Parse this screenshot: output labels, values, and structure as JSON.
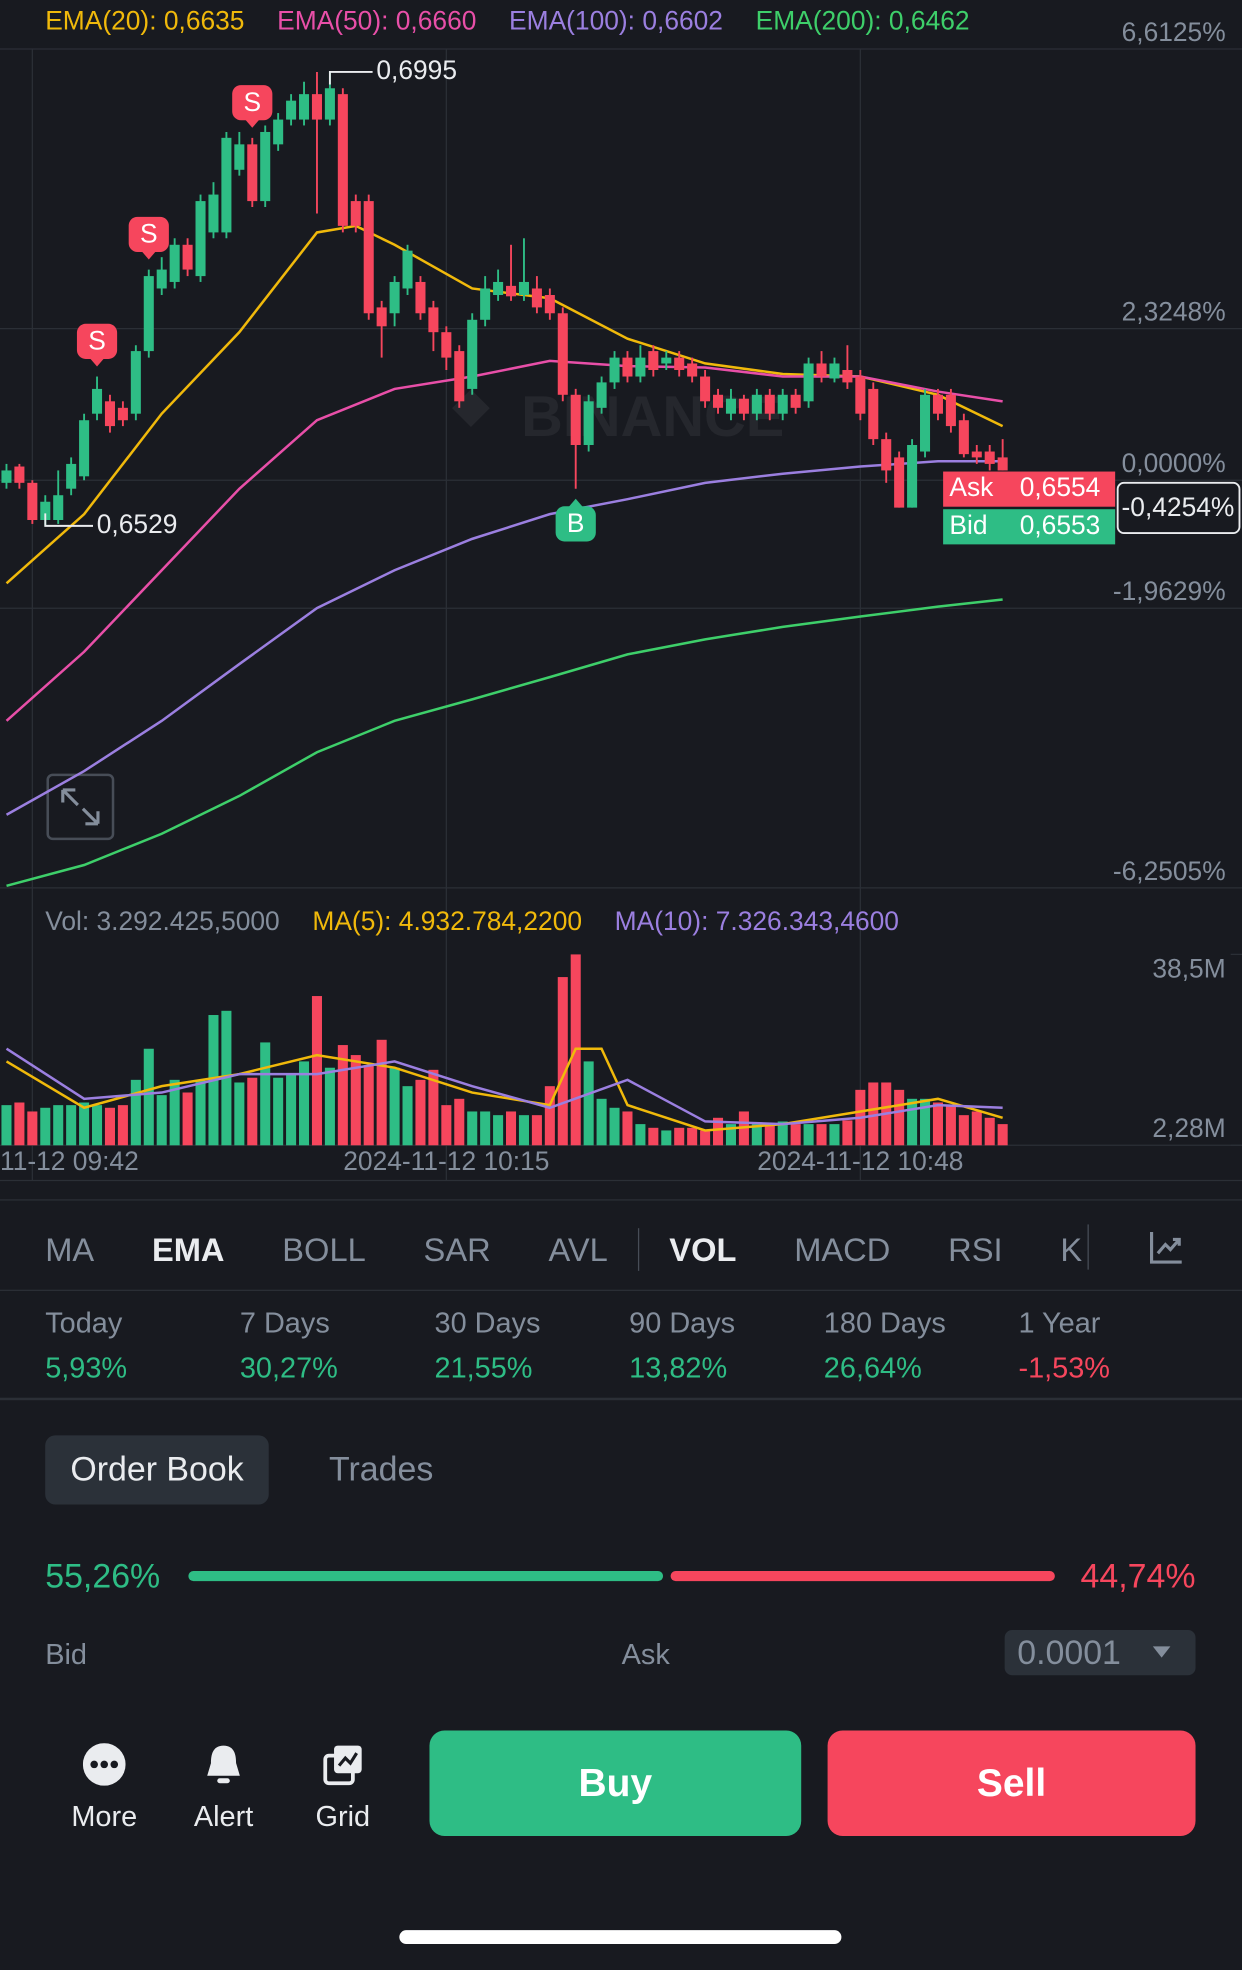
{
  "chart_data": [
    {
      "type": "candlestick",
      "up_color": "#2ebd85",
      "down_color": "#f6465d",
      "grid": true,
      "xlim": [
        -0.5,
        95.5
      ],
      "ylim": [
        -6.2505,
        6.6125
      ],
      "yticks": [
        {
          "value": -6.2505,
          "label": "-6,2505%"
        },
        {
          "value": -1.9629,
          "label": "-1,9629%"
        },
        {
          "value": 0,
          "label": "0,0000%"
        },
        {
          "value": 2.3248,
          "label": "2,3248%"
        },
        {
          "value": 6.6125,
          "label": "6,6125%"
        }
      ],
      "ohlc": [
        [
          -0.04,
          0.25,
          -0.13,
          0.15
        ],
        [
          0.21,
          0.25,
          -0.13,
          -0.04
        ],
        [
          -0.04,
          0.0,
          -0.67,
          -0.61
        ],
        [
          -0.61,
          -0.23,
          -0.7,
          -0.33
        ],
        [
          -0.61,
          0.15,
          -0.67,
          -0.23
        ],
        [
          -0.13,
          0.35,
          -0.23,
          0.25
        ],
        [
          0.06,
          1.02,
          0.0,
          0.92
        ],
        [
          1.02,
          1.59,
          0.92,
          1.4
        ],
        [
          1.21,
          1.31,
          0.73,
          0.83
        ],
        [
          1.11,
          1.21,
          0.83,
          0.92
        ],
        [
          1.02,
          2.07,
          0.92,
          1.98
        ],
        [
          1.98,
          3.23,
          1.88,
          3.13
        ],
        [
          2.94,
          3.42,
          2.84,
          3.23
        ],
        [
          3.04,
          3.71,
          2.94,
          3.61
        ],
        [
          3.61,
          3.71,
          3.13,
          3.23
        ],
        [
          3.13,
          4.38,
          3.04,
          4.28
        ],
        [
          3.8,
          4.57,
          3.71,
          4.38
        ],
        [
          3.8,
          5.34,
          3.71,
          5.25
        ],
        [
          4.76,
          5.34,
          4.67,
          5.15
        ],
        [
          5.15,
          5.25,
          4.19,
          4.28
        ],
        [
          4.28,
          5.44,
          4.19,
          5.34
        ],
        [
          5.15,
          5.63,
          5.05,
          5.53
        ],
        [
          5.53,
          5.92,
          5.44,
          5.82
        ],
        [
          5.53,
          6.11,
          5.44,
          5.92
        ],
        [
          5.92,
          6.26,
          4.09,
          5.53
        ],
        [
          5.53,
          6.26,
          5.44,
          6.01
        ],
        [
          5.92,
          6.01,
          3.8,
          3.9
        ],
        [
          4.28,
          4.38,
          3.8,
          3.9
        ],
        [
          4.28,
          4.38,
          2.46,
          2.56
        ],
        [
          2.65,
          2.75,
          1.88,
          2.36
        ],
        [
          2.56,
          3.13,
          2.36,
          3.04
        ],
        [
          2.94,
          3.61,
          2.84,
          3.52
        ],
        [
          3.04,
          3.13,
          2.46,
          2.56
        ],
        [
          2.65,
          2.75,
          1.98,
          2.27
        ],
        [
          2.27,
          2.36,
          1.69,
          1.88
        ],
        [
          1.98,
          2.07,
          1.11,
          1.21
        ],
        [
          1.4,
          2.56,
          1.31,
          2.46
        ],
        [
          2.46,
          3.13,
          2.36,
          2.94
        ],
        [
          2.84,
          3.23,
          2.75,
          3.04
        ],
        [
          2.98,
          3.61,
          2.75,
          2.82
        ],
        [
          2.84,
          3.71,
          2.75,
          3.04
        ],
        [
          2.94,
          3.13,
          2.56,
          2.65
        ],
        [
          2.84,
          2.94,
          2.46,
          2.56
        ],
        [
          2.56,
          2.65,
          1.21,
          1.31
        ],
        [
          1.31,
          1.4,
          -0.13,
          0.54
        ],
        [
          0.54,
          1.31,
          0.44,
          1.21
        ],
        [
          1.11,
          1.59,
          1.02,
          1.5
        ],
        [
          1.5,
          1.98,
          1.4,
          1.88
        ],
        [
          1.88,
          1.98,
          1.5,
          1.59
        ],
        [
          1.59,
          2.07,
          1.5,
          1.88
        ],
        [
          1.98,
          2.07,
          1.59,
          1.69
        ],
        [
          1.79,
          1.98,
          1.69,
          1.88
        ],
        [
          1.88,
          1.98,
          1.59,
          1.69
        ],
        [
          1.79,
          1.88,
          1.5,
          1.59
        ],
        [
          1.59,
          1.69,
          1.11,
          1.21
        ],
        [
          1.31,
          1.4,
          1.02,
          1.11
        ],
        [
          1.02,
          1.4,
          0.92,
          1.25
        ],
        [
          1.25,
          1.31,
          0.92,
          1.02
        ],
        [
          1.02,
          1.4,
          0.92,
          1.31
        ],
        [
          1.31,
          1.4,
          0.92,
          1.02
        ],
        [
          1.02,
          1.4,
          0.92,
          1.31
        ],
        [
          1.31,
          1.4,
          1.02,
          1.11
        ],
        [
          1.21,
          1.88,
          1.11,
          1.79
        ],
        [
          1.79,
          1.98,
          1.5,
          1.59
        ],
        [
          1.56,
          1.88,
          1.5,
          1.79
        ],
        [
          1.69,
          2.07,
          1.4,
          1.5
        ],
        [
          1.59,
          1.69,
          0.92,
          1.02
        ],
        [
          1.4,
          1.5,
          0.54,
          0.63
        ],
        [
          0.63,
          0.73,
          -0.04,
          0.15
        ],
        [
          0.35,
          0.44,
          -0.42,
          -0.42
        ],
        [
          -0.42,
          0.63,
          -0.42,
          0.54
        ],
        [
          0.44,
          1.4,
          0.35,
          1.31
        ],
        [
          1.31,
          1.4,
          0.92,
          1.02
        ],
        [
          1.31,
          1.4,
          0.73,
          0.83
        ],
        [
          0.92,
          1.02,
          0.35,
          0.4
        ],
        [
          0.44,
          0.54,
          0.25,
          0.35
        ],
        [
          0.44,
          0.54,
          0.15,
          0.25
        ],
        [
          0.35,
          0.63,
          0.15,
          0.15
        ]
      ],
      "series": [
        {
          "name": "EMA(20): 0,6635",
          "color": "#f0b90b",
          "x": [
            0,
            6,
            12,
            18,
            24,
            27,
            30,
            36,
            42,
            48,
            54,
            60,
            66,
            72,
            77
          ],
          "values": [
            -1.58,
            -0.52,
            1.02,
            2.27,
            3.8,
            3.9,
            3.61,
            2.94,
            2.79,
            2.17,
            1.79,
            1.63,
            1.59,
            1.31,
            0.83
          ]
        },
        {
          "name": "EMA(50): 0,6660",
          "color": "#e84fa8",
          "x": [
            0,
            6,
            12,
            18,
            24,
            30,
            36,
            42,
            48,
            54,
            60,
            66,
            72,
            77
          ],
          "values": [
            -3.69,
            -2.63,
            -1.38,
            -0.13,
            0.92,
            1.4,
            1.59,
            1.83,
            1.75,
            1.73,
            1.59,
            1.59,
            1.36,
            1.21
          ]
        },
        {
          "name": "EMA(100): 0,6602",
          "color": "#9b7fe0",
          "x": [
            0,
            6,
            12,
            18,
            24,
            30,
            36,
            42,
            48,
            54,
            60,
            66,
            72,
            77
          ],
          "values": [
            -5.13,
            -4.46,
            -3.69,
            -2.82,
            -1.96,
            -1.38,
            -0.9,
            -0.52,
            -0.29,
            -0.04,
            0.1,
            0.21,
            0.29,
            0.29
          ]
        },
        {
          "name": "EMA(200): 0,6462",
          "color": "#3ecf6a",
          "x": [
            0,
            6,
            12,
            18,
            24,
            30,
            36,
            42,
            48,
            54,
            60,
            66,
            72,
            77
          ],
          "values": [
            -6.22,
            -5.9,
            -5.42,
            -4.84,
            -4.17,
            -3.69,
            -3.36,
            -3.02,
            -2.67,
            -2.44,
            -2.25,
            -2.09,
            -1.94,
            -1.83
          ]
        }
      ],
      "high_marker": {
        "index": 25,
        "label": "0,6995"
      },
      "low_marker": {
        "index": 3,
        "label": "0,6529"
      },
      "signals": [
        {
          "index": 7,
          "label": "S"
        },
        {
          "index": 11,
          "label": "S"
        },
        {
          "index": 19,
          "label": "S"
        },
        {
          "index": 44,
          "label": "B"
        }
      ],
      "watermark": "BINANCE",
      "ask_label": "Ask",
      "ask": "0,6554",
      "bid_label": "Bid",
      "bid": "0,6553",
      "current": {
        "value": -0.4254,
        "label": "-0,4254%"
      }
    },
    {
      "type": "bar",
      "name": "Vol: 3.292.425,5000",
      "xlim": [
        -0.5,
        95.5
      ],
      "ylim": [
        2.28,
        38.5
      ],
      "yticks": [
        {
          "value": 2.28,
          "label": "2,28M"
        },
        {
          "value": 38.5,
          "label": "38,5M"
        }
      ],
      "xticks": [
        {
          "value": 2,
          "label": "11-12 09:42"
        },
        {
          "value": 34,
          "label": "2024-11-12 10:15"
        },
        {
          "value": 66,
          "label": "2024-11-12 10:48"
        }
      ],
      "values": [
        9.9,
        10.4,
        8.7,
        9.4,
        9.9,
        9.9,
        10.4,
        9.9,
        9.4,
        9.9,
        14.7,
        20.6,
        11.8,
        14.7,
        12.3,
        14.7,
        27.0,
        27.8,
        14.2,
        15.1,
        21.8,
        15.1,
        15.8,
        18.2,
        30.6,
        17.0,
        21.3,
        19.4,
        17.5,
        22.3,
        17.0,
        13.5,
        14.7,
        16.6,
        9.9,
        11.1,
        8.7,
        8.7,
        8.0,
        8.7,
        8.0,
        8.0,
        13.5,
        34.2,
        38.5,
        18.2,
        11.1,
        9.4,
        8.7,
        6.3,
        5.6,
        5.1,
        5.6,
        5.6,
        5.1,
        7.5,
        6.3,
        8.7,
        6.3,
        6.3,
        6.8,
        6.3,
        6.3,
        6.3,
        6.3,
        7.0,
        12.8,
        14.2,
        14.2,
        12.8,
        11.1,
        11.1,
        10.4,
        9.9,
        8.0,
        8.7,
        7.5,
        6.3
      ],
      "series": [
        {
          "name": "MA(5): 4.932.784,2200",
          "color": "#f0b90b",
          "x": [
            0,
            6,
            12,
            18,
            24,
            30,
            36,
            42,
            44,
            46,
            48,
            54,
            60,
            66,
            72,
            77
          ],
          "values": [
            18.2,
            9.4,
            13.5,
            15.8,
            19.4,
            17.0,
            12.3,
            9.9,
            20.6,
            20.6,
            9.9,
            5.1,
            6.3,
            8.7,
            11.1,
            7.5
          ]
        },
        {
          "name": "MA(10): 7.326.343,4600",
          "color": "#9b7fe0",
          "x": [
            0,
            6,
            12,
            18,
            24,
            30,
            36,
            42,
            48,
            54,
            60,
            66,
            72,
            77
          ],
          "values": [
            20.6,
            11.1,
            12.3,
            15.8,
            15.8,
            18.2,
            13.5,
            9.4,
            14.7,
            6.8,
            6.3,
            7.5,
            9.9,
            9.4
          ]
        }
      ]
    }
  ],
  "main_tabs": [
    "MA",
    "EMA",
    "BOLL",
    "SAR",
    "AVL"
  ],
  "active_main": 1,
  "sub_tabs": [
    "VOL",
    "MACD",
    "RSI",
    "K"
  ],
  "active_sub": 0,
  "performance": [
    {
      "period": "Today",
      "change": "5,93%"
    },
    {
      "period": "7 Days",
      "change": "30,27%"
    },
    {
      "period": "30 Days",
      "change": "21,55%"
    },
    {
      "period": "90 Days",
      "change": "13,82%"
    },
    {
      "period": "180 Days",
      "change": "26,64%"
    },
    {
      "period": "1 Year",
      "change": "-1,53%"
    }
  ],
  "order_book": {
    "tabs": [
      "Order Book",
      "Trades"
    ],
    "active_tab": 0,
    "bid_ratio": {
      "value": 55.26,
      "label": "55,26%"
    },
    "ask_ratio": {
      "value": 44.74,
      "label": "44,74%"
    },
    "bid_header": "Bid",
    "ask_header": "Ask",
    "precision": "0.0001"
  },
  "actions": {
    "tools": [
      "More",
      "Alert",
      "Grid"
    ],
    "buy": "Buy",
    "sell": "Sell"
  }
}
